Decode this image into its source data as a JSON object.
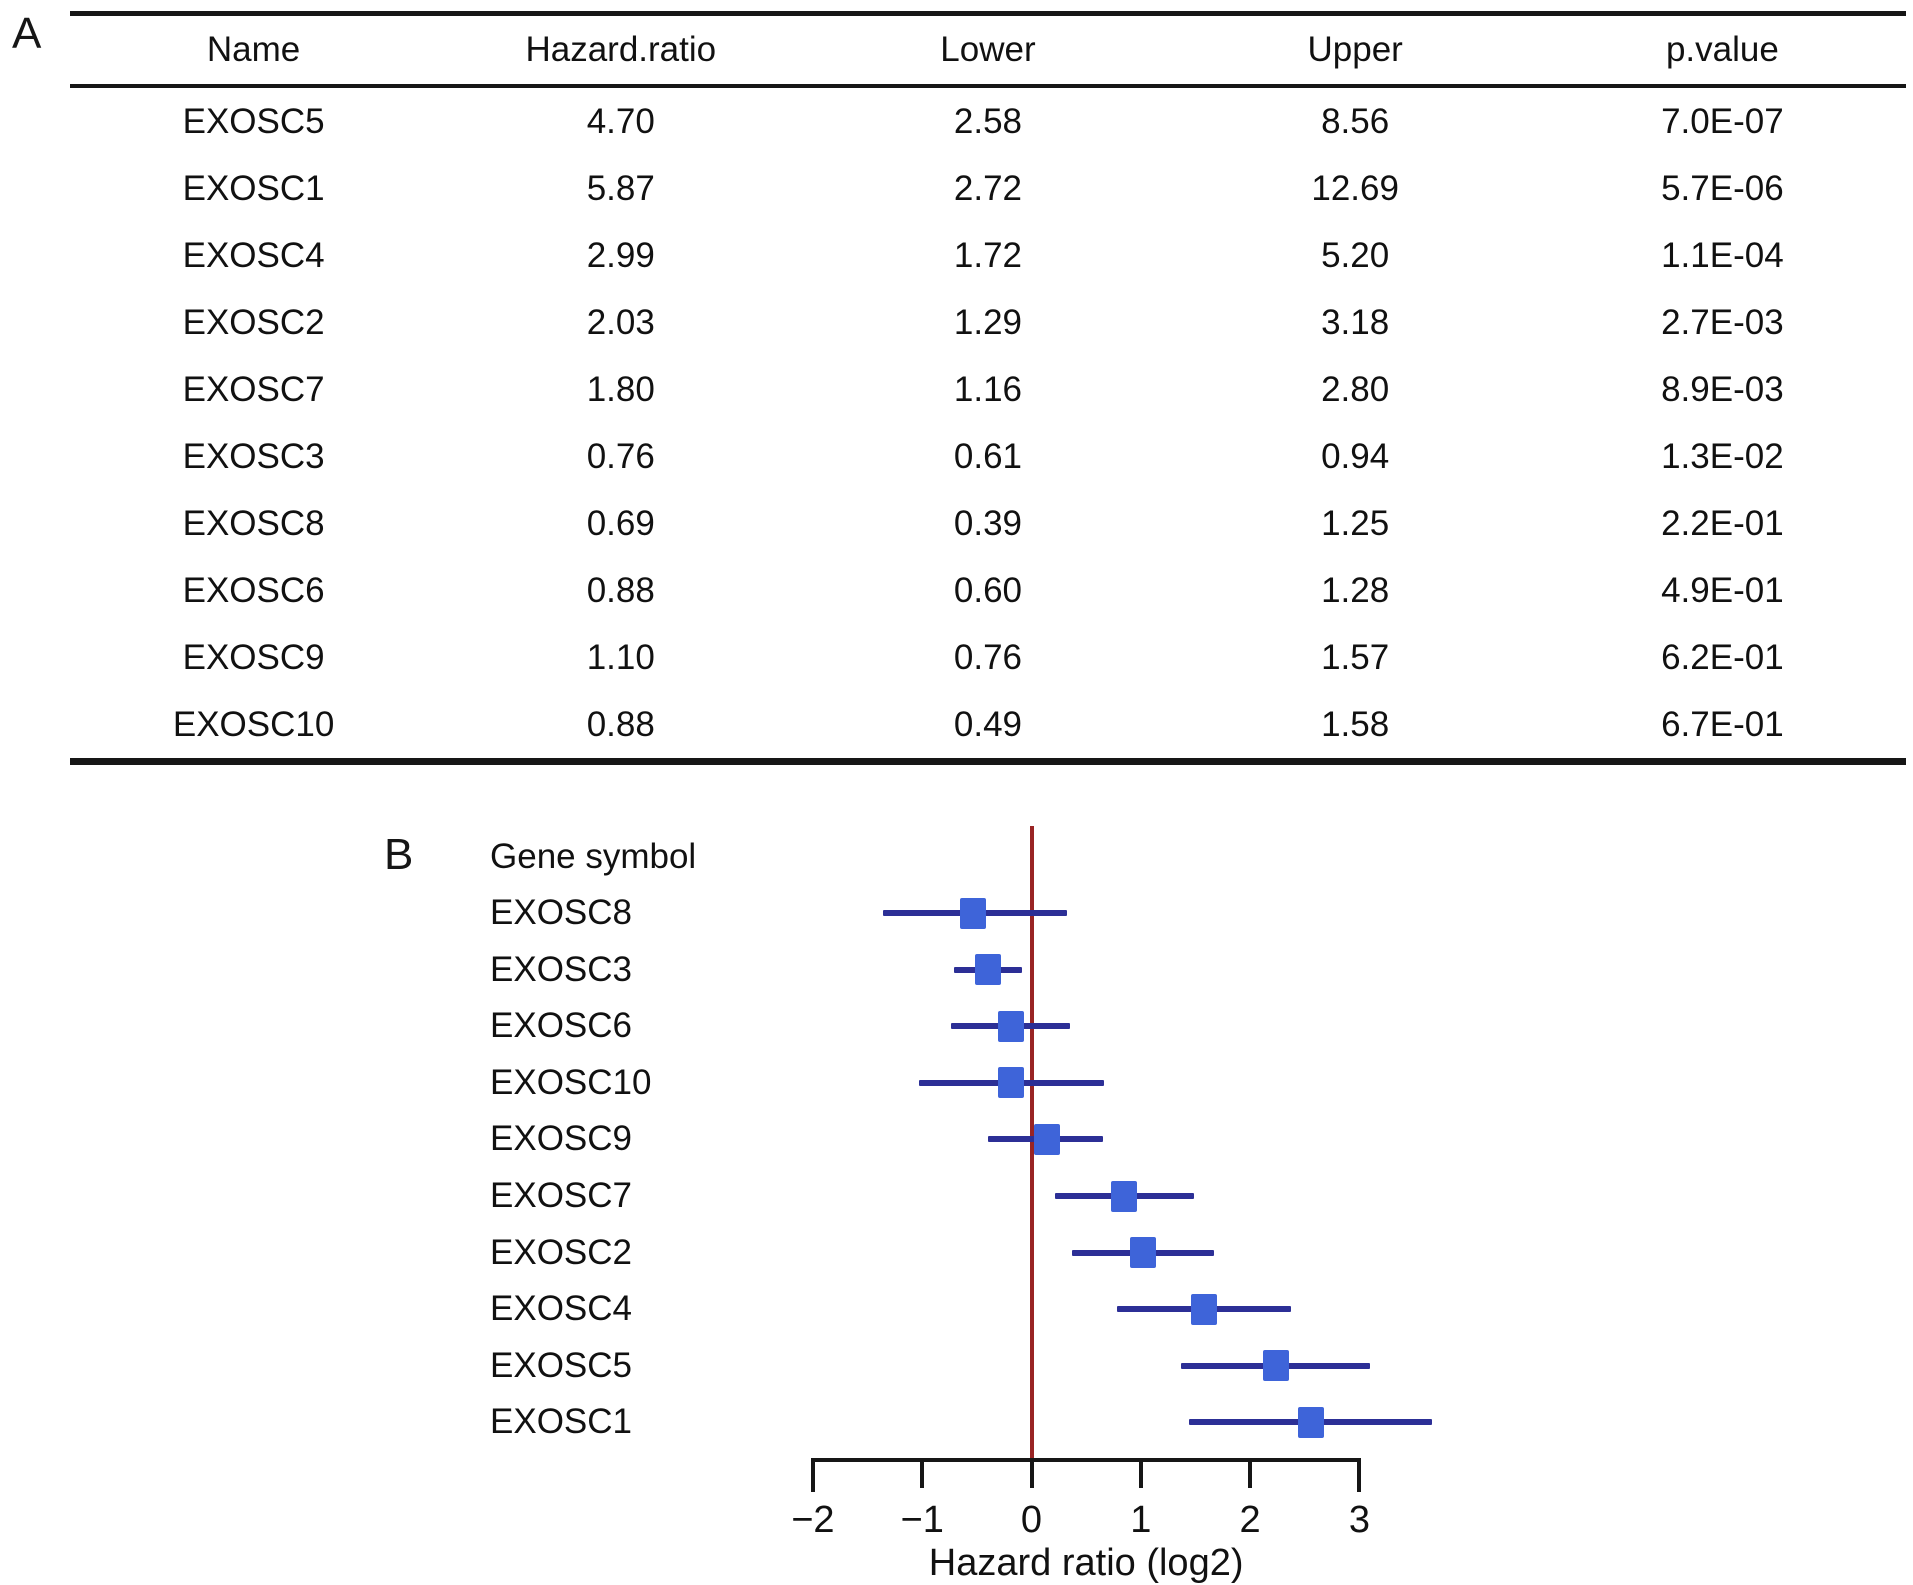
{
  "figure": {
    "panel_a_label": "A",
    "panel_b_label": "B"
  },
  "table": {
    "columns": [
      "Name",
      "Hazard.ratio",
      "Lower",
      "Upper",
      "p.value"
    ],
    "rows": [
      [
        "EXOSC5",
        "4.70",
        "2.58",
        "8.56",
        "7.0E-07"
      ],
      [
        "EXOSC1",
        "5.87",
        "2.72",
        "12.69",
        "5.7E-06"
      ],
      [
        "EXOSC4",
        "2.99",
        "1.72",
        "5.20",
        "1.1E-04"
      ],
      [
        "EXOSC2",
        "2.03",
        "1.29",
        "3.18",
        "2.7E-03"
      ],
      [
        "EXOSC7",
        "1.80",
        "1.16",
        "2.80",
        "8.9E-03"
      ],
      [
        "EXOSC3",
        "0.76",
        "0.61",
        "0.94",
        "1.3E-02"
      ],
      [
        "EXOSC8",
        "0.69",
        "0.39",
        "1.25",
        "2.2E-01"
      ],
      [
        "EXOSC6",
        "0.88",
        "0.60",
        "1.28",
        "4.9E-01"
      ],
      [
        "EXOSC9",
        "1.10",
        "0.76",
        "1.57",
        "6.2E-01"
      ],
      [
        "EXOSC10",
        "0.88",
        "0.49",
        "1.58",
        "6.7E-01"
      ]
    ]
  },
  "chart_data": {
    "type": "scatter",
    "variant": "forest-plot",
    "column_header": "Gene symbol",
    "xlabel": "Hazard ratio (log2)",
    "x_scale_note": "markers plotted at log2(hazard ratio); CI bars span log2(lower)..log2(upper)",
    "xlim": [
      -2,
      3
    ],
    "x_ticks": [
      -2,
      -1,
      0,
      1,
      2,
      3
    ],
    "x_tick_labels": [
      "−2",
      "−1",
      "0",
      "1",
      "2",
      "3"
    ],
    "reference_line_x": 0,
    "legend_position": "none",
    "grid": false,
    "rows": [
      {
        "gene": "EXOSC8",
        "hr": 0.69,
        "lower": 0.39,
        "upper": 1.25
      },
      {
        "gene": "EXOSC3",
        "hr": 0.76,
        "lower": 0.61,
        "upper": 0.94
      },
      {
        "gene": "EXOSC6",
        "hr": 0.88,
        "lower": 0.6,
        "upper": 1.28
      },
      {
        "gene": "EXOSC10",
        "hr": 0.88,
        "lower": 0.49,
        "upper": 1.58
      },
      {
        "gene": "EXOSC9",
        "hr": 1.1,
        "lower": 0.76,
        "upper": 1.57
      },
      {
        "gene": "EXOSC7",
        "hr": 1.8,
        "lower": 1.16,
        "upper": 2.8
      },
      {
        "gene": "EXOSC2",
        "hr": 2.03,
        "lower": 1.29,
        "upper": 3.18
      },
      {
        "gene": "EXOSC4",
        "hr": 2.99,
        "lower": 1.72,
        "upper": 5.2
      },
      {
        "gene": "EXOSC5",
        "hr": 4.7,
        "lower": 2.58,
        "upper": 8.56
      },
      {
        "gene": "EXOSC1",
        "hr": 5.87,
        "lower": 2.72,
        "upper": 12.69
      }
    ],
    "colors": {
      "marker": "#3e64d9",
      "ci_line": "#2c2f96",
      "reference_line": "#992424",
      "axis": "#161616",
      "text": "#111111"
    }
  }
}
